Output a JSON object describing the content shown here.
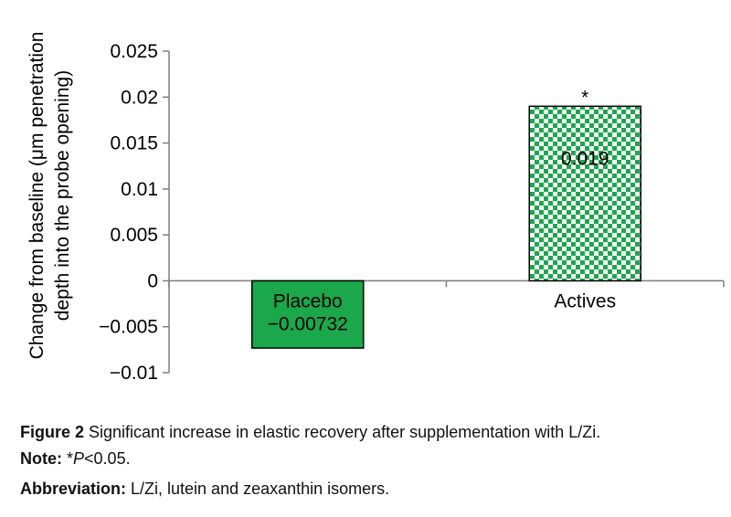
{
  "chart_data": {
    "type": "bar",
    "categories": [
      "Placebo",
      "Actives"
    ],
    "values": [
      -0.00732,
      0.019
    ],
    "data_labels": [
      [
        "Placebo",
        "−0.00732"
      ],
      [
        "0.019"
      ]
    ],
    "annotations": [
      {
        "category": "Actives",
        "text": "*"
      }
    ],
    "ylabel_lines": [
      "Change from baseline (μm penetration",
      "depth into the probe opening)"
    ],
    "xlabel": "",
    "ylim": [
      -0.01,
      0.025
    ],
    "yticks": [
      0.025,
      0.02,
      0.015,
      0.01,
      0.005,
      0,
      -0.005,
      -0.01
    ],
    "ytick_labels": [
      "0.025",
      "0.02",
      "0.015",
      "0.01",
      "0.005",
      "0",
      "−0.005",
      "−0.01"
    ],
    "colors": {
      "placebo": "#1aa84a",
      "actives": "#1aa84a",
      "axis": "#7f7f7f"
    }
  },
  "caption": {
    "figure_label": "Figure 2",
    "figure_text": " Significant increase in elastic recovery after supplementation with L/Zi.",
    "note_label": "Note:",
    "note_text_star": " *",
    "note_text_p": "P",
    "note_text_rest": "<0.05.",
    "abbr_label": "Abbreviation:",
    "abbr_text": " L/Zi, lutein and zeaxanthin isomers."
  }
}
